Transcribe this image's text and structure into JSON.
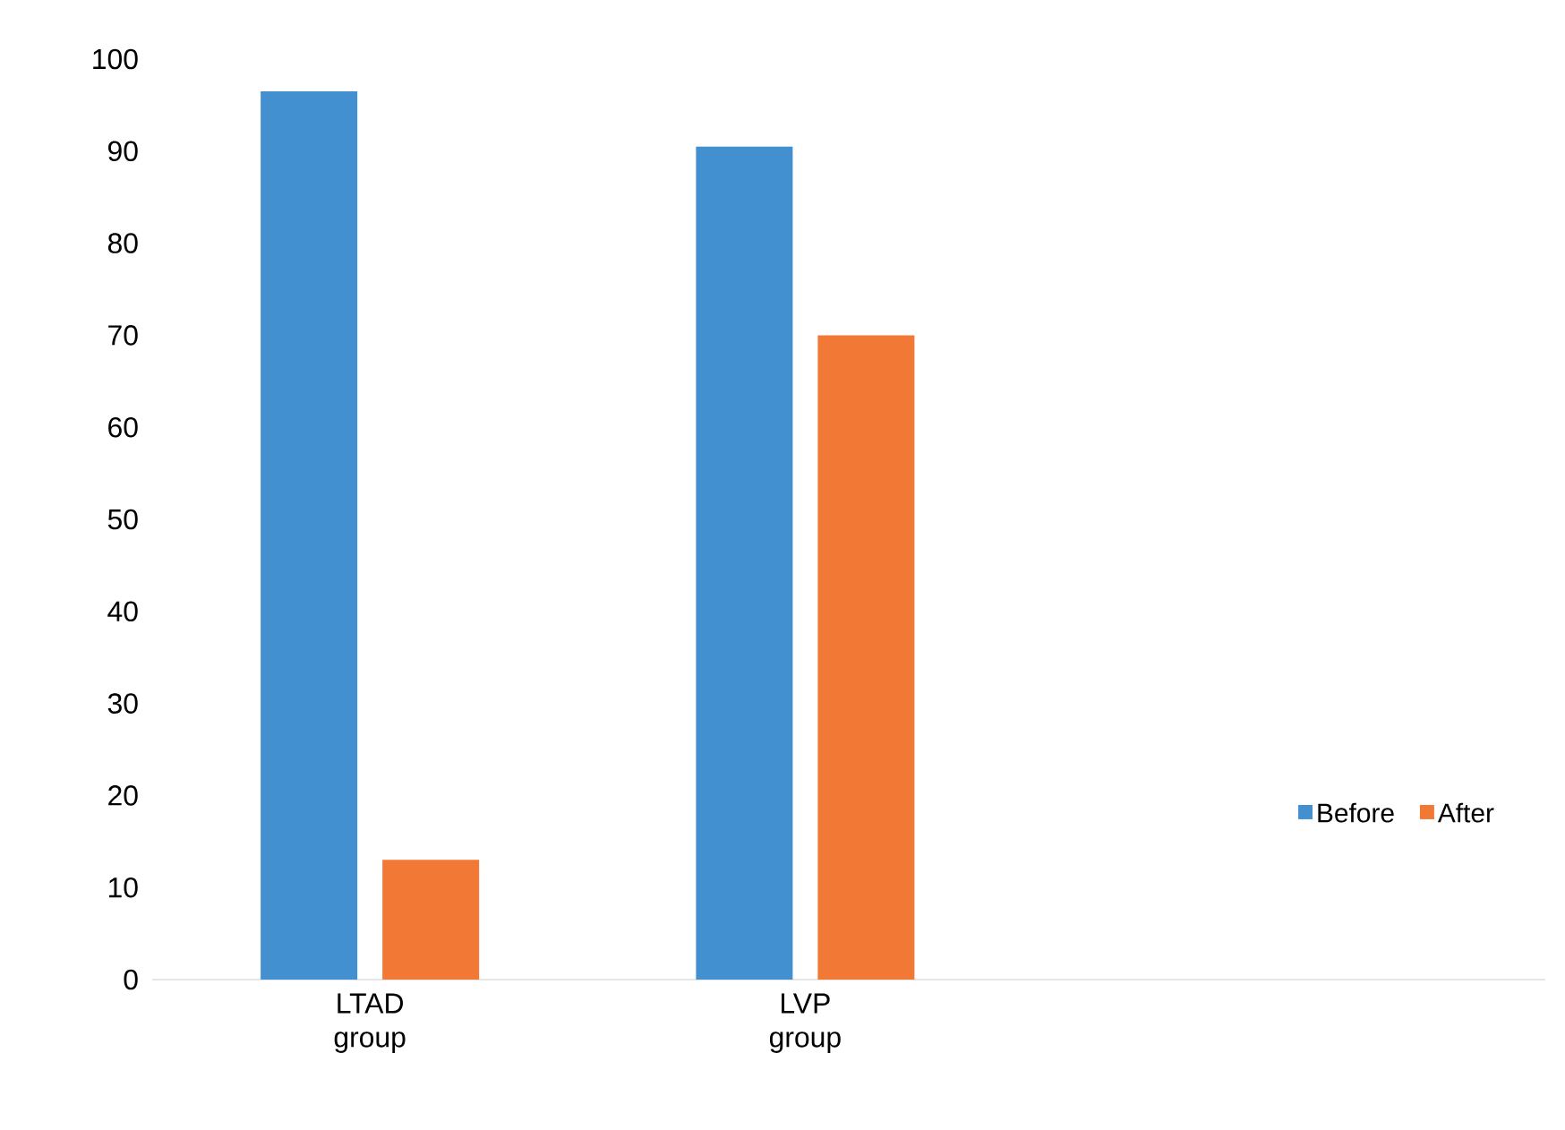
{
  "chart_data": {
    "type": "bar",
    "categories": [
      "LTAD group",
      "LVP group"
    ],
    "series": [
      {
        "name": "Before",
        "color": "#4390d0",
        "values": [
          96.5,
          90.5
        ]
      },
      {
        "name": "After",
        "color": "#f27935",
        "values": [
          13,
          70
        ]
      }
    ],
    "ylim": [
      0,
      100
    ],
    "yticks": [
      0,
      10,
      20,
      30,
      40,
      50,
      60,
      70,
      80,
      90,
      100
    ],
    "legend": "right"
  }
}
